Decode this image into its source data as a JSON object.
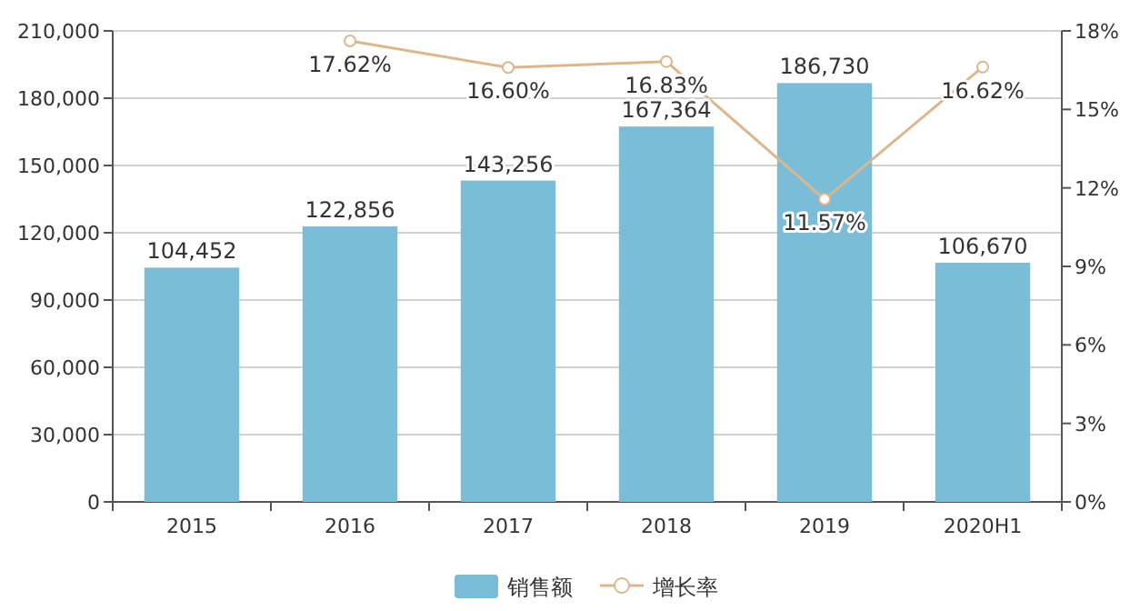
{
  "chart_data": {
    "type": "bar",
    "categories": [
      "2015",
      "2016",
      "2017",
      "2018",
      "2019",
      "2020H1"
    ],
    "series": [
      {
        "name": "销售额",
        "color": "#7bbcd9",
        "values": [
          104452,
          122856,
          143256,
          167364,
          186730,
          106670
        ],
        "value_labels": [
          "104,452",
          "122,856",
          "143,256",
          "167,364",
          "186,730",
          "106,670"
        ]
      },
      {
        "name": "增长率",
        "type": "line",
        "axis": "y2",
        "color": "#dcb78c",
        "values": [
          null,
          17.62,
          16.6,
          16.83,
          11.57,
          16.62
        ],
        "value_labels": [
          null,
          "17.62%",
          "16.60%",
          "16.83%",
          "11.57%",
          "16.62%"
        ]
      }
    ],
    "ylim": [
      0,
      210000
    ],
    "yticks": [
      0,
      {
        "value": 30000,
        "label": "30,000"
      },
      {
        "value": 60000,
        "label": "60,000"
      },
      {
        "value": 90000,
        "label": "90,000"
      },
      {
        "value": 120000,
        "label": "120,000"
      },
      {
        "value": 150000,
        "label": "150,000"
      },
      {
        "value": 180000,
        "label": "180,000"
      },
      {
        "value": 210000,
        "label": "210,000"
      }
    ],
    "y2lim": [
      0,
      18
    ],
    "y2ticks": [
      {
        "value": 0,
        "label": "0%"
      },
      {
        "value": 3,
        "label": "3%"
      },
      {
        "value": 6,
        "label": "6%"
      },
      {
        "value": 9,
        "label": "9%"
      },
      {
        "value": 12,
        "label": "12%"
      },
      {
        "value": 15,
        "label": "15%"
      },
      {
        "value": 18,
        "label": "18%"
      }
    ],
    "grid": "y",
    "legend": "bottom",
    "marker": "circle"
  }
}
